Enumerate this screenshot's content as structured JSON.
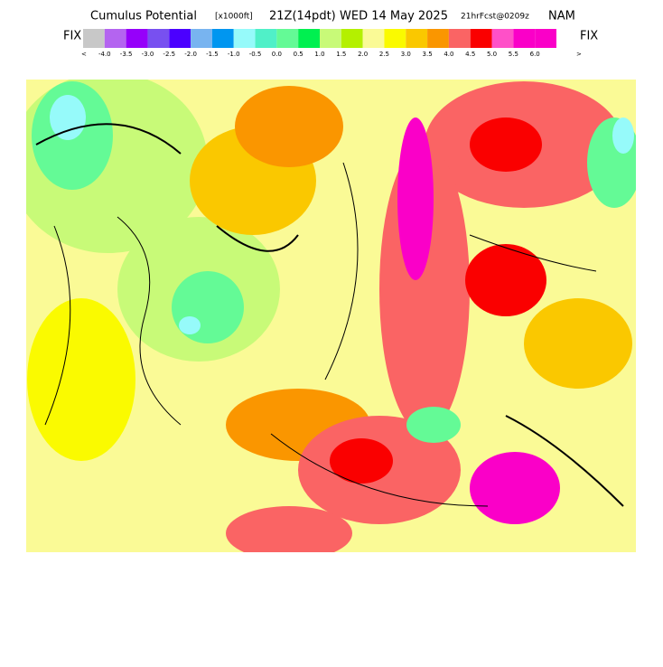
{
  "header": {
    "title": "Cumulus Potential",
    "units": "[x1000ft]",
    "valid": "21Z(14pdt)",
    "date": "WED 14 May 2025",
    "forecast": "21hrFcst@0209z",
    "model": "NAM"
  },
  "legend": {
    "left": "FIX",
    "right": "FIX",
    "low": "<",
    "high": ">",
    "colors": [
      "#c8c8c8",
      "#b464f0",
      "#9600fa",
      "#7850f0",
      "#4b00ff",
      "#78b4f0",
      "#0096f0",
      "#96fafa",
      "#50f0c8",
      "#64fa96",
      "#00f050",
      "#c8fa78",
      "#b4f000",
      "#fafa96",
      "#fafa00",
      "#fac800",
      "#fa9600",
      "#fa6464",
      "#fa0000",
      "#ff50c8",
      "#fa00c8",
      "#fa00c8"
    ],
    "labels": [
      "-4.0",
      "-3.5",
      "-3.0",
      "-2.5",
      "-2.0",
      "-1.5",
      "-1.0",
      "-0.5",
      "0.0",
      "0.5",
      "1.0",
      "1.5",
      "2.0",
      "2.5",
      "3.0",
      "3.5",
      "4.0",
      "4.5",
      "5.0",
      "5.5",
      "6.0"
    ]
  }
}
